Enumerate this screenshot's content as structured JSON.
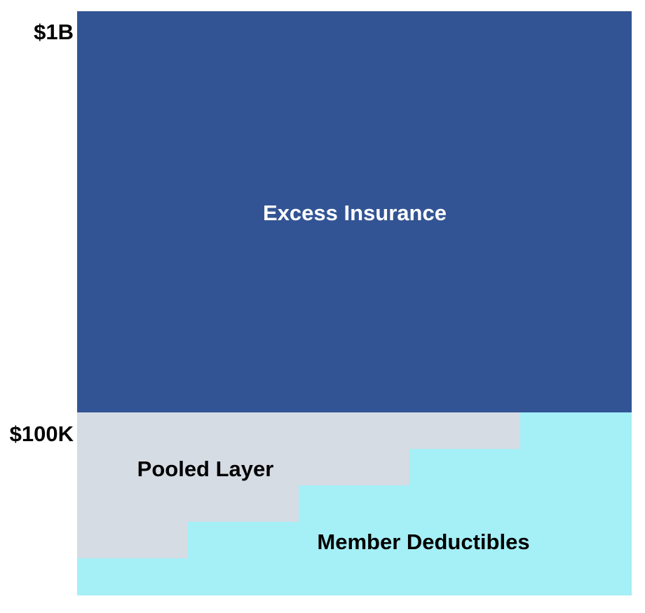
{
  "axis": {
    "top_label": "$1B",
    "bottom_label": "$100K"
  },
  "layers": {
    "excess": {
      "label": "Excess Insurance",
      "color": "#325494",
      "text_color": "#ffffff"
    },
    "pooled": {
      "label": "Pooled Layer",
      "color": "#d6dce4",
      "text_color": "#000000"
    },
    "deductibles": {
      "label": "Member Deductibles",
      "color": "#a5eff6",
      "text_color": "#000000"
    }
  }
}
